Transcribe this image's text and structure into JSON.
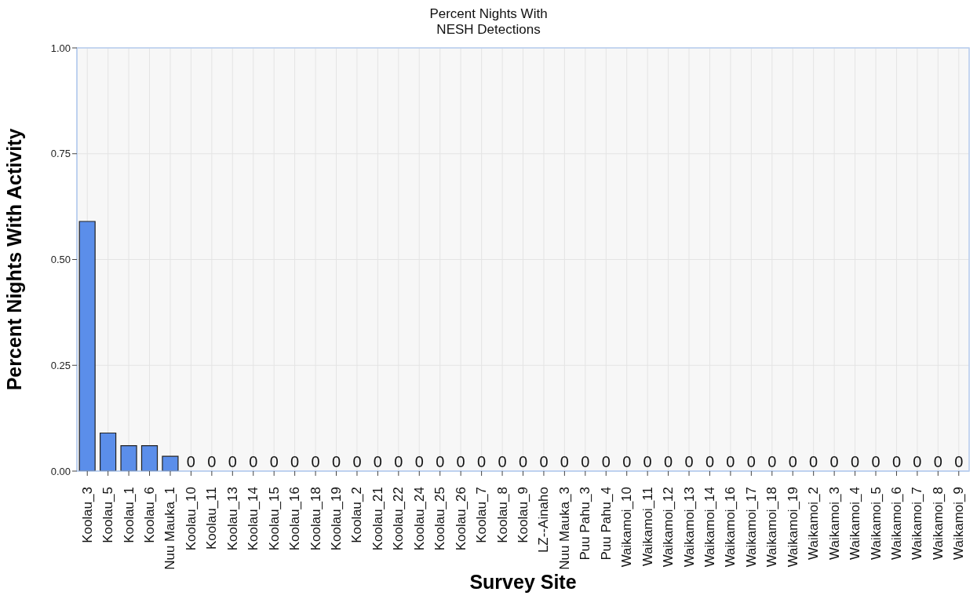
{
  "chart_data": {
    "type": "bar",
    "title": "Percent Nights With\nNESH Detections",
    "xlabel": "Survey Site",
    "ylabel": "Percent Nights With Activity",
    "categories": [
      "Koolau_3",
      "Koolau_5",
      "Koolau_1",
      "Koolau_6",
      "Nuu Mauka_1",
      "Koolau_10",
      "Koolau_11",
      "Koolau_13",
      "Koolau_14",
      "Koolau_15",
      "Koolau_16",
      "Koolau_18",
      "Koolau_19",
      "Koolau_2",
      "Koolau_21",
      "Koolau_22",
      "Koolau_24",
      "Koolau_25",
      "Koolau_26",
      "Koolau_7",
      "Koolau_8",
      "Koolau_9",
      "LZ--Ainaho",
      "Nuu Mauka_3",
      "Puu Pahu_3",
      "Puu Pahu_4",
      "Waikamoi_10",
      "Waikamoi_11",
      "Waikamoi_12",
      "Waikamoi_13",
      "Waikamoi_14",
      "Waikamoi_16",
      "Waikamoi_17",
      "Waikamoi_18",
      "Waikamoi_19",
      "Waikamoi_2",
      "Waikamoi_3",
      "Waikamoi_4",
      "Waikamoi_5",
      "Waikamoi_6",
      "Waikamoi_7",
      "Waikamoi_8",
      "Waikamoi_9"
    ],
    "values": [
      0.59,
      0.09,
      0.06,
      0.06,
      0.035,
      0,
      0,
      0,
      0,
      0,
      0,
      0,
      0,
      0,
      0,
      0,
      0,
      0,
      0,
      0,
      0,
      0,
      0,
      0,
      0,
      0,
      0,
      0,
      0,
      0,
      0,
      0,
      0,
      0,
      0,
      0,
      0,
      0,
      0,
      0,
      0,
      0,
      0
    ],
    "value_labels": [
      null,
      null,
      null,
      null,
      null,
      "0",
      "0",
      "0",
      "0",
      "0",
      "0",
      "0",
      "0",
      "0",
      "0",
      "0",
      "0",
      "0",
      "0",
      "0",
      "0",
      "0",
      "0",
      "0",
      "0",
      "0",
      "0",
      "0",
      "0",
      "0",
      "0",
      "0",
      "0",
      "0",
      "0",
      "0",
      "0",
      "0",
      "0",
      "0",
      "0",
      "0",
      "0"
    ],
    "color": "#5b8eea",
    "ylim": [
      0,
      1
    ],
    "yticks": [
      {
        "value": 0,
        "label": "0.00"
      },
      {
        "value": 0.25,
        "label": "0.25"
      },
      {
        "value": 0.5,
        "label": "0.50"
      },
      {
        "value": 0.75,
        "label": "0.75"
      },
      {
        "value": 1,
        "label": "1.00"
      }
    ],
    "grid": true
  }
}
